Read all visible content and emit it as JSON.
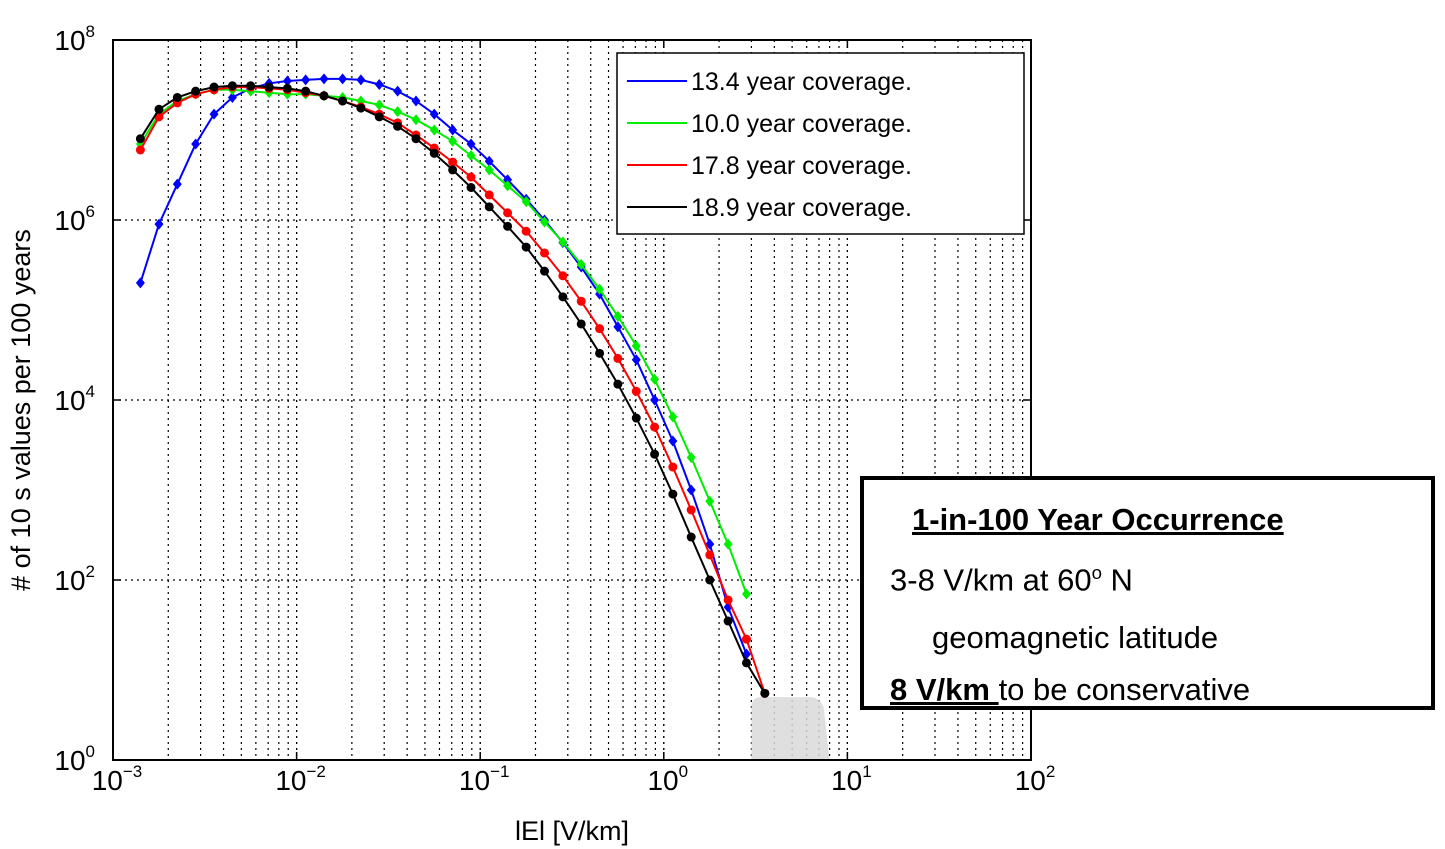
{
  "chart_data": {
    "type": "line",
    "xscale": "log",
    "yscale": "log",
    "xlim": [
      0.001,
      100
    ],
    "ylim": [
      1,
      100000000
    ],
    "grid": true,
    "xlabel": "lEl [V/km]",
    "ylabel": "# of 10 s values per 100 years",
    "x_ticks": [
      {
        "base": "10",
        "exp": "−3"
      },
      {
        "base": "10",
        "exp": "−2"
      },
      {
        "base": "10",
        "exp": "−1"
      },
      {
        "base": "10",
        "exp": "0"
      },
      {
        "base": "10",
        "exp": "1"
      },
      {
        "base": "10",
        "exp": "2"
      }
    ],
    "y_ticks": [
      {
        "base": "10",
        "exp": "0"
      },
      {
        "base": "10",
        "exp": "2"
      },
      {
        "base": "10",
        "exp": "4"
      },
      {
        "base": "10",
        "exp": "6"
      },
      {
        "base": "10",
        "exp": "8"
      }
    ],
    "legend_position": "top-right",
    "series": [
      {
        "name": "13.4 year coverage.",
        "color": "#0000ff",
        "x": [
          0.00141,
          0.00178,
          0.00224,
          0.00282,
          0.00355,
          0.00447,
          0.00562,
          0.00708,
          0.00891,
          0.0112,
          0.0141,
          0.0178,
          0.0224,
          0.0282,
          0.0355,
          0.0447,
          0.0562,
          0.0708,
          0.0891,
          0.112,
          0.141,
          0.178,
          0.224,
          0.282,
          0.355,
          0.447,
          0.562,
          0.708,
          0.891,
          1.12,
          1.41,
          1.78,
          2.24,
          2.82
        ],
        "y": [
          200000,
          900000,
          2500000,
          7000000,
          15000000,
          23000000,
          29000000,
          33000000,
          35000000,
          36000000,
          37000000,
          37000000,
          36000000,
          32000000,
          27000000,
          21000000,
          15000000,
          10000000,
          7000000,
          4500000,
          2800000,
          1700000,
          1000000,
          560000,
          300000,
          150000,
          65000,
          28000,
          10000,
          3500,
          1000,
          250,
          50,
          15
        ]
      },
      {
        "name": "10.0 year coverage.",
        "color": "#00ee00",
        "x": [
          0.00141,
          0.00178,
          0.00224,
          0.00282,
          0.00355,
          0.00447,
          0.00562,
          0.00708,
          0.00891,
          0.0112,
          0.0141,
          0.0178,
          0.0224,
          0.0282,
          0.0355,
          0.0447,
          0.0562,
          0.0708,
          0.0891,
          0.112,
          0.141,
          0.178,
          0.224,
          0.282,
          0.355,
          0.447,
          0.562,
          0.708,
          0.891,
          1.12,
          1.41,
          1.78,
          2.24,
          2.82
        ],
        "y": [
          7000000,
          15000000,
          21000000,
          25000000,
          28000000,
          28000000,
          27000000,
          26000000,
          25000000,
          25000000,
          24000000,
          23000000,
          21000000,
          19000000,
          16000000,
          13000000,
          10000000,
          7500000,
          5200000,
          3600000,
          2400000,
          1600000,
          950000,
          570000,
          320000,
          170000,
          85000,
          40000,
          17000,
          6500,
          2300,
          750,
          250,
          70
        ]
      },
      {
        "name": "17.8 year coverage.",
        "color": "#ff0000",
        "x": [
          0.00141,
          0.00178,
          0.00224,
          0.00282,
          0.00355,
          0.00447,
          0.00562,
          0.00708,
          0.00891,
          0.0112,
          0.0141,
          0.0178,
          0.0224,
          0.0282,
          0.0355,
          0.0447,
          0.0562,
          0.0708,
          0.0891,
          0.112,
          0.141,
          0.178,
          0.224,
          0.282,
          0.355,
          0.447,
          0.562,
          0.708,
          0.891,
          1.12,
          1.41,
          1.78,
          2.24,
          2.82,
          3.55
        ],
        "y": [
          6000000,
          14000000,
          20000000,
          25000000,
          28000000,
          30000000,
          30000000,
          29000000,
          28000000,
          26000000,
          24000000,
          21000000,
          18000000,
          15000000,
          12000000,
          8800000,
          6300000,
          4400000,
          3000000,
          1900000,
          1200000,
          750000,
          430000,
          240000,
          125000,
          62000,
          29000,
          12500,
          5000,
          1800,
          600,
          190,
          60,
          22,
          5.5
        ]
      },
      {
        "name": "18.9 year coverage.",
        "color": "#000000",
        "x": [
          0.00141,
          0.00178,
          0.00224,
          0.00282,
          0.00355,
          0.00447,
          0.00562,
          0.00708,
          0.00891,
          0.0112,
          0.0141,
          0.0178,
          0.0224,
          0.0282,
          0.0355,
          0.0447,
          0.0562,
          0.0708,
          0.0891,
          0.112,
          0.141,
          0.178,
          0.224,
          0.282,
          0.355,
          0.447,
          0.562,
          0.708,
          0.891,
          1.12,
          1.41,
          1.78,
          2.24,
          2.82,
          3.55
        ],
        "y": [
          8000000,
          17000000,
          23000000,
          27000000,
          30000000,
          31000000,
          31000000,
          30000000,
          29000000,
          27000000,
          24000000,
          21000000,
          17500000,
          14000000,
          11000000,
          8000000,
          5500000,
          3600000,
          2300000,
          1400000,
          850000,
          500000,
          270000,
          140000,
          70000,
          33000,
          15000,
          6300,
          2500,
          900,
          300,
          100,
          35,
          12,
          5.5
        ]
      }
    ],
    "shaded_region": {
      "x": [
        3,
        8
      ],
      "y": [
        1,
        5
      ],
      "color": "#d9d9d9"
    },
    "annotation": {
      "title": "1-in-100 Year Occurrence",
      "line1_text": "3-8 V/km at 60",
      "line1_sup": "o",
      "line1_tail": " N",
      "line2": "geomagnetic latitude",
      "line3_bold": "8 V/km ",
      "line3_rest": "to be conservative"
    }
  }
}
